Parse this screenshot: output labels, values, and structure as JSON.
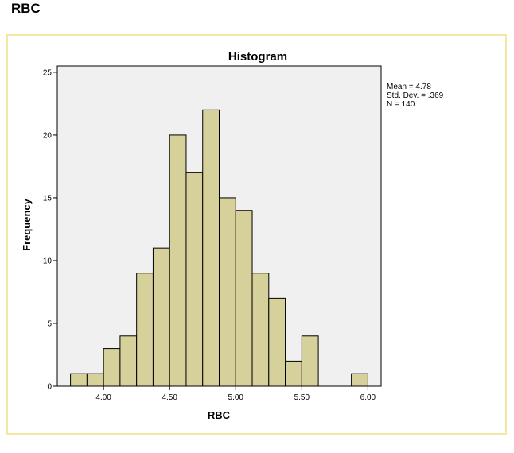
{
  "header": {
    "title": "RBC"
  },
  "chart_data": {
    "type": "bar",
    "title": "Histogram",
    "xlabel": "RBC",
    "ylabel": "Frequency",
    "xlim": [
      3.65,
      6.1
    ],
    "ylim": [
      0,
      25.5
    ],
    "bin_width": 0.125,
    "bins": [
      {
        "start": 3.75,
        "count": 1
      },
      {
        "start": 3.875,
        "count": 1
      },
      {
        "start": 4.0,
        "count": 3
      },
      {
        "start": 4.125,
        "count": 4
      },
      {
        "start": 4.25,
        "count": 9
      },
      {
        "start": 4.375,
        "count": 11
      },
      {
        "start": 4.5,
        "count": 20
      },
      {
        "start": 4.625,
        "count": 17
      },
      {
        "start": 4.75,
        "count": 22
      },
      {
        "start": 4.875,
        "count": 15
      },
      {
        "start": 5.0,
        "count": 14
      },
      {
        "start": 5.125,
        "count": 9
      },
      {
        "start": 5.25,
        "count": 7
      },
      {
        "start": 5.375,
        "count": 2
      },
      {
        "start": 5.5,
        "count": 4
      },
      {
        "start": 5.875,
        "count": 1
      }
    ],
    "x_ticks": [
      {
        "value": 4.0,
        "label": "4.00"
      },
      {
        "value": 4.5,
        "label": "4.50"
      },
      {
        "value": 5.0,
        "label": "5.00"
      },
      {
        "value": 5.5,
        "label": "5.50"
      },
      {
        "value": 6.0,
        "label": "6.00"
      }
    ],
    "y_ticks": [
      {
        "value": 0,
        "label": "0"
      },
      {
        "value": 5,
        "label": "5"
      },
      {
        "value": 10,
        "label": "10"
      },
      {
        "value": 15,
        "label": "15"
      },
      {
        "value": 20,
        "label": "20"
      },
      {
        "value": 25,
        "label": "25"
      }
    ],
    "stats": [
      "Mean = 4.78",
      "Std. Dev. = .369",
      "N = 140"
    ],
    "grid": false,
    "legend": "right",
    "colors": {
      "bar_fill": "#d6d19b",
      "bar_stroke": "#000000",
      "plot_bg": "#f0f0f0",
      "frame_border": "#f3e7a3"
    }
  }
}
